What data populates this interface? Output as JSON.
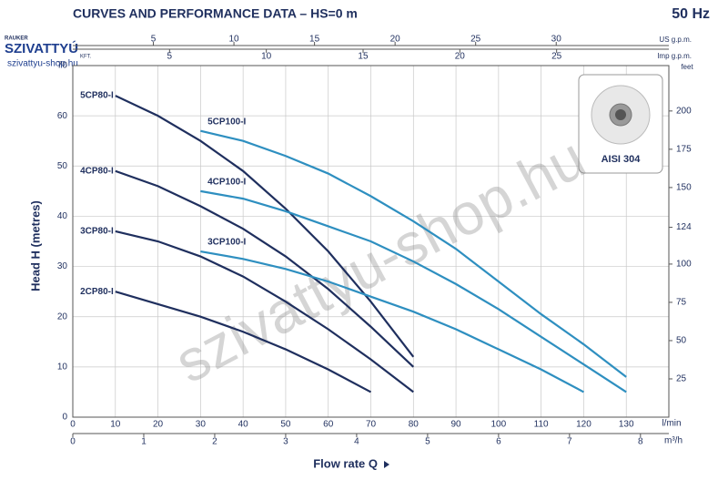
{
  "chart_data": {
    "type": "line",
    "title": "CURVES AND PERFORMANCE DATA – HS=0 m",
    "frequency": "50 Hz",
    "x_label": "Flow rate Q",
    "y_label": "Head H (metres)",
    "x_unit": "l/min",
    "xlim": [
      0,
      140
    ],
    "xticks": [
      0,
      10,
      20,
      30,
      40,
      50,
      60,
      70,
      80,
      90,
      100,
      110,
      120,
      130
    ],
    "ylim": [
      0,
      70
    ],
    "yticks": [
      0,
      10,
      20,
      30,
      40,
      50,
      60,
      70
    ],
    "grid": true,
    "y2_unit": "feet",
    "y2lim": [
      0,
      229.66
    ],
    "y2ticks": [
      25,
      50,
      75,
      100,
      124,
      150,
      175,
      200
    ],
    "m3h_unit": "m³/h",
    "m3hlim": [
      0,
      8.4
    ],
    "m3hticks": [
      0,
      1,
      2,
      3,
      4,
      5,
      6,
      7,
      8
    ],
    "usgpm_unit": "US g.p.m.",
    "usgpmlim": [
      0,
      36.99
    ],
    "usgpmticks": [
      5,
      10,
      15,
      20,
      25,
      30
    ],
    "impgpm_unit": "Imp g.p.m.",
    "impgpmlim": [
      0,
      30.8
    ],
    "impgpmticks": [
      5,
      10,
      15,
      20,
      25
    ],
    "inset_label": "AISI 304",
    "watermark": "szivattyu-shop.hu",
    "logo": {
      "top": "RAUKER",
      "name": "SZIVATTYÚ",
      "suffix": "KFT.",
      "site": "szivattyu-shop.hu"
    },
    "series": [
      {
        "name": "2CP80-I",
        "color": "#1f2f5e",
        "x": [
          10,
          20,
          30,
          40,
          50,
          60,
          70
        ],
        "values": [
          25,
          22.5,
          20,
          17,
          13.5,
          9.5,
          5
        ]
      },
      {
        "name": "3CP80-I",
        "color": "#1f2f5e",
        "x": [
          10,
          20,
          30,
          40,
          50,
          60,
          70,
          80
        ],
        "values": [
          37,
          35,
          32,
          28,
          23,
          17.5,
          11.5,
          5
        ]
      },
      {
        "name": "4CP80-I",
        "color": "#1f2f5e",
        "x": [
          10,
          20,
          30,
          40,
          50,
          60,
          70,
          80
        ],
        "values": [
          49,
          46,
          42,
          37.5,
          32,
          25.5,
          18,
          10
        ]
      },
      {
        "name": "5CP80-I",
        "color": "#1f2f5e",
        "x": [
          10,
          20,
          30,
          40,
          50,
          60,
          70,
          80
        ],
        "values": [
          64,
          60,
          55,
          49,
          41.5,
          33,
          23,
          12
        ]
      },
      {
        "name": "3CP100-I",
        "color": "#2e8fc0",
        "x": [
          30,
          40,
          50,
          60,
          70,
          80,
          90,
          100,
          110,
          120
        ],
        "values": [
          33,
          31.5,
          29.5,
          27,
          24,
          21,
          17.5,
          13.5,
          9.5,
          5
        ]
      },
      {
        "name": "4CP100-I",
        "color": "#2e8fc0",
        "x": [
          30,
          40,
          50,
          60,
          70,
          80,
          90,
          100,
          110,
          120,
          130
        ],
        "values": [
          45,
          43.5,
          41,
          38,
          35,
          31,
          26.5,
          21.5,
          16,
          10.5,
          5
        ]
      },
      {
        "name": "5CP100-I",
        "color": "#2e8fc0",
        "x": [
          30,
          40,
          50,
          60,
          70,
          80,
          90,
          100,
          110,
          120,
          130
        ],
        "values": [
          57,
          55,
          52,
          48.5,
          44,
          39,
          33.5,
          27,
          20.5,
          14.5,
          8
        ]
      }
    ]
  }
}
